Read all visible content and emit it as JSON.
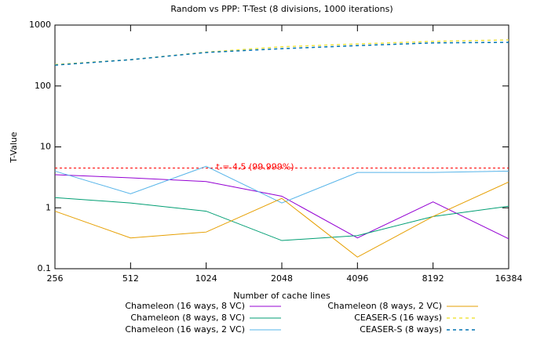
{
  "chart_data": {
    "type": "line",
    "title": "Random vs PPP: T-Test (8 divisions, 1000 iterations)",
    "xlabel": "Number of cache lines",
    "ylabel": "T-Value",
    "x": [
      256,
      512,
      1024,
      2048,
      4096,
      8192,
      16384
    ],
    "xlim": [
      256,
      16384
    ],
    "xticks": [
      256,
      512,
      1024,
      2048,
      4096,
      8192,
      16384
    ],
    "xscale": "log2",
    "ylim": [
      0.1,
      1000
    ],
    "yticks": [
      0.1,
      1,
      10,
      100,
      1000
    ],
    "yscale": "log",
    "series": [
      {
        "name": "Chameleon (16 ways, 8 VC)",
        "color": "#9400d3",
        "dashed": false,
        "values": [
          3.5,
          3.1,
          2.7,
          1.55,
          0.32,
          1.25,
          0.31
        ]
      },
      {
        "name": "Chameleon (8 ways, 8 VC)",
        "color": "#009e73",
        "dashed": false,
        "values": [
          1.47,
          1.2,
          0.88,
          0.29,
          0.35,
          0.72,
          1.06
        ]
      },
      {
        "name": "Chameleon (16 ways, 2 VC)",
        "color": "#56b4e9",
        "dashed": false,
        "values": [
          4.0,
          1.7,
          4.8,
          1.2,
          3.8,
          3.8,
          4.0
        ]
      },
      {
        "name": "Chameleon (8 ways, 2 VC)",
        "color": "#e69f00",
        "dashed": false,
        "values": [
          0.88,
          0.32,
          0.4,
          1.43,
          0.155,
          0.72,
          2.65
        ]
      },
      {
        "name": "CEASER-S (16 ways)",
        "color": "#f0e442",
        "dashed": true,
        "values": [
          225,
          270,
          360,
          440,
          490,
          540,
          570
        ]
      },
      {
        "name": "CEASER-S (8 ways)",
        "color": "#0072b2",
        "dashed": true,
        "values": [
          220,
          270,
          355,
          410,
          460,
          510,
          520
        ]
      }
    ],
    "annotations": [
      {
        "text": "t = 4.5 (99.999%)",
        "y": 4.5,
        "color": "#ff0000"
      }
    ]
  }
}
